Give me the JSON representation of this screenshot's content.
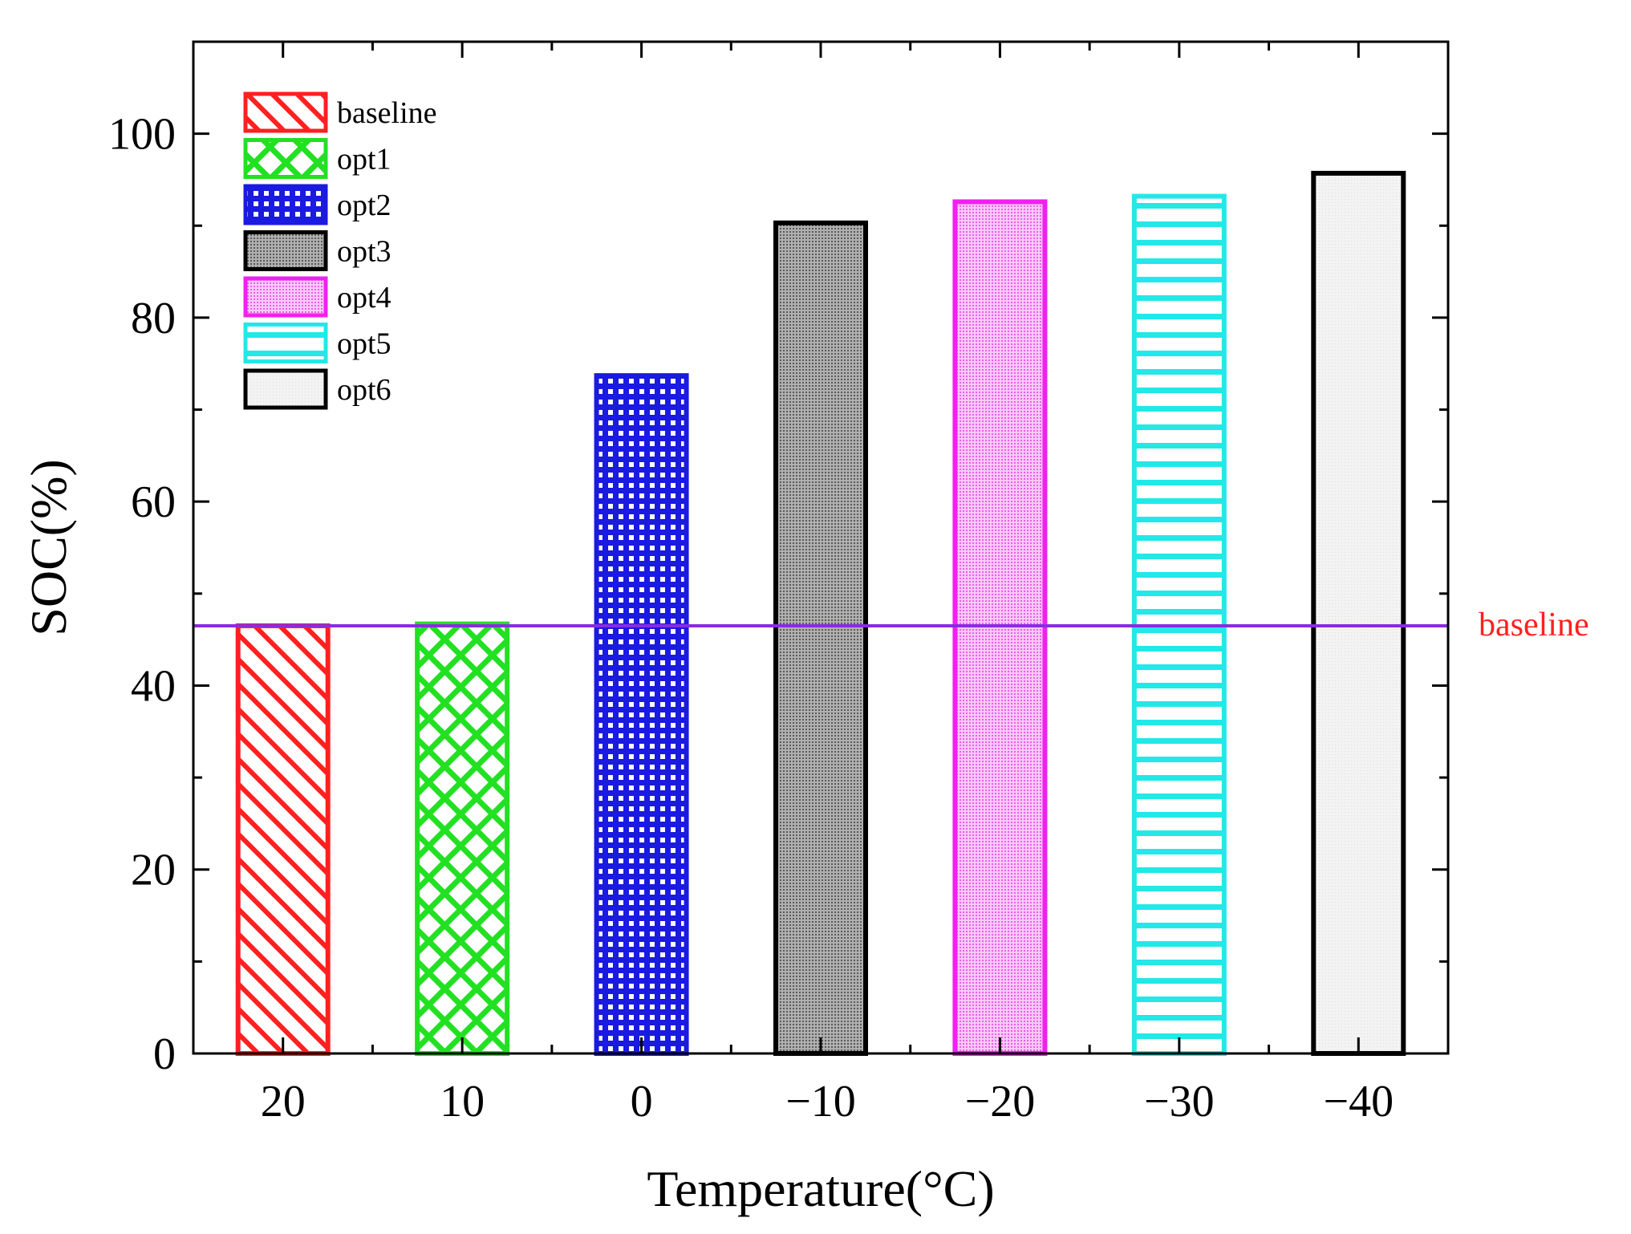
{
  "chart_data": {
    "type": "bar",
    "title": "",
    "xlabel": "Temperature(°C)",
    "ylabel": "SOC(%)",
    "ylim": [
      0,
      110
    ],
    "yticks": [
      0,
      20,
      40,
      60,
      80,
      100
    ],
    "categories": [
      "20",
      "10",
      "0",
      "−10",
      "−20",
      "−30",
      "−40"
    ],
    "series": [
      {
        "name": "baseline",
        "category": "20",
        "value": 46.5,
        "color": "#ff2020",
        "pattern": "diagonal"
      },
      {
        "name": "opt1",
        "category": "10",
        "value": 46.7,
        "color": "#22e022",
        "pattern": "crosshatch"
      },
      {
        "name": "opt2",
        "category": "0",
        "value": 73.7,
        "color": "#1a1ae0",
        "pattern": "grid"
      },
      {
        "name": "opt3",
        "category": "−10",
        "value": 90.3,
        "color": "#000000",
        "pattern": "dense-dots",
        "fill": "#9a9a9a"
      },
      {
        "name": "opt4",
        "category": "−20",
        "value": 92.6,
        "color": "#f020f0",
        "pattern": "dense-dots",
        "fill": "#f6a0f6"
      },
      {
        "name": "opt5",
        "category": "−30",
        "value": 93.2,
        "color": "#22e8e8",
        "pattern": "horizontal"
      },
      {
        "name": "opt6",
        "category": "−40",
        "value": 95.7,
        "color": "#000000",
        "pattern": "light",
        "fill": "#efefef"
      }
    ],
    "reference_line": {
      "label": "baseline",
      "value": 46.5,
      "color": "#8a2be2",
      "label_color": "#ff2020"
    },
    "legend_position": "top-left"
  }
}
